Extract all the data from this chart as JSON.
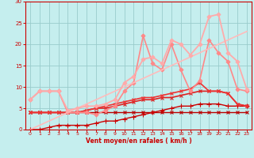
{
  "xlabel": "Vent moyen/en rafales ( km/h )",
  "xlim": [
    -0.5,
    23.5
  ],
  "ylim": [
    0,
    30
  ],
  "xticks": [
    0,
    1,
    2,
    3,
    4,
    5,
    6,
    7,
    8,
    9,
    10,
    11,
    12,
    13,
    14,
    15,
    16,
    17,
    18,
    19,
    20,
    21,
    22,
    23
  ],
  "yticks": [
    0,
    5,
    10,
    15,
    20,
    25,
    30
  ],
  "bg_color": "#c5eeee",
  "grid_color": "#99cccc",
  "lines": [
    {
      "x": [
        0,
        1,
        2,
        3,
        4,
        5,
        6,
        7,
        8,
        9,
        10,
        11,
        12,
        13,
        14,
        15,
        16,
        17,
        18,
        19,
        20,
        21,
        22,
        23
      ],
      "y": [
        4,
        4,
        4,
        4,
        4,
        4,
        4,
        4,
        4,
        4,
        4,
        4,
        4,
        4,
        4,
        4,
        4,
        4,
        4,
        4,
        4,
        4,
        4,
        4
      ],
      "color": "#bb0000",
      "lw": 1.0,
      "marker": "x",
      "ms": 3
    },
    {
      "x": [
        0,
        1,
        2,
        3,
        4,
        5,
        6,
        7,
        8,
        9,
        10,
        11,
        12,
        13,
        14,
        15,
        16,
        17,
        18,
        19,
        20,
        21,
        22,
        23
      ],
      "y": [
        0,
        0,
        0.5,
        1,
        1,
        1,
        1,
        1.5,
        2,
        2,
        2.5,
        3,
        3.5,
        4,
        4.5,
        5,
        5.5,
        5.5,
        6,
        6,
        6,
        5.5,
        5.5,
        5.5
      ],
      "color": "#cc0000",
      "lw": 1.0,
      "marker": "+",
      "ms": 4
    },
    {
      "x": [
        0,
        1,
        2,
        3,
        4,
        5,
        6,
        7,
        8,
        9,
        10,
        11,
        12,
        13,
        14,
        15,
        16,
        17,
        18,
        19,
        20,
        21,
        22,
        23
      ],
      "y": [
        4,
        4,
        4,
        4,
        4,
        4,
        4.5,
        5,
        5,
        5.5,
        6,
        6.5,
        7,
        7,
        7.5,
        7.5,
        8,
        8.5,
        9,
        9,
        9,
        8.5,
        6,
        5.5
      ],
      "color": "#dd2222",
      "lw": 1.2,
      "marker": "x",
      "ms": 3
    },
    {
      "x": [
        0,
        1,
        2,
        3,
        4,
        5,
        6,
        7,
        8,
        9,
        10,
        11,
        12,
        13,
        14,
        15,
        16,
        17,
        18,
        19,
        20,
        21,
        22,
        23
      ],
      "y": [
        4,
        4,
        4,
        4,
        4,
        4,
        4.5,
        5,
        5.5,
        6,
        6.5,
        7,
        7.5,
        7.5,
        8,
        8.5,
        9,
        9.5,
        11,
        9,
        9,
        8.5,
        6,
        5.5
      ],
      "color": "#ee3333",
      "lw": 1.2,
      "marker": "x",
      "ms": 3
    },
    {
      "x": [
        0,
        1,
        2,
        3,
        4,
        5,
        6,
        7,
        8,
        9,
        10,
        11,
        12,
        13,
        14,
        15,
        16,
        17,
        18,
        19,
        20,
        21,
        22,
        23
      ],
      "y": [
        7,
        9,
        9,
        9,
        4,
        4,
        4,
        3.5,
        4.5,
        5.5,
        9,
        11,
        22,
        15.5,
        14,
        20,
        14,
        9,
        11.5,
        21,
        18,
        16,
        9.5,
        9
      ],
      "color": "#ff8888",
      "lw": 1.2,
      "marker": "D",
      "ms": 2.5
    },
    {
      "x": [
        0,
        1,
        2,
        3,
        4,
        5,
        6,
        7,
        8,
        9,
        10,
        11,
        12,
        13,
        14,
        15,
        16,
        17,
        18,
        19,
        20,
        21,
        22,
        23
      ],
      "y": [
        0,
        1,
        2,
        3,
        4,
        5,
        6,
        7,
        8,
        9,
        10,
        11,
        12,
        13,
        14,
        15,
        16,
        17,
        18,
        19,
        20,
        21,
        22,
        23
      ],
      "color": "#ffbbbb",
      "lw": 1.2,
      "marker": null,
      "ms": 0
    },
    {
      "x": [
        0,
        1,
        2,
        3,
        4,
        5,
        6,
        7,
        8,
        9,
        10,
        11,
        12,
        13,
        14,
        15,
        16,
        17,
        18,
        19,
        20,
        21,
        22,
        23
      ],
      "y": [
        7,
        9,
        9,
        9,
        4.5,
        5,
        5.5,
        5.5,
        6,
        7,
        11,
        12.5,
        16.5,
        17,
        15.5,
        21,
        20,
        17.5,
        20,
        26.5,
        27,
        18,
        16,
        9.5
      ],
      "color": "#ffaaaa",
      "lw": 1.3,
      "marker": "D",
      "ms": 2.5
    }
  ]
}
